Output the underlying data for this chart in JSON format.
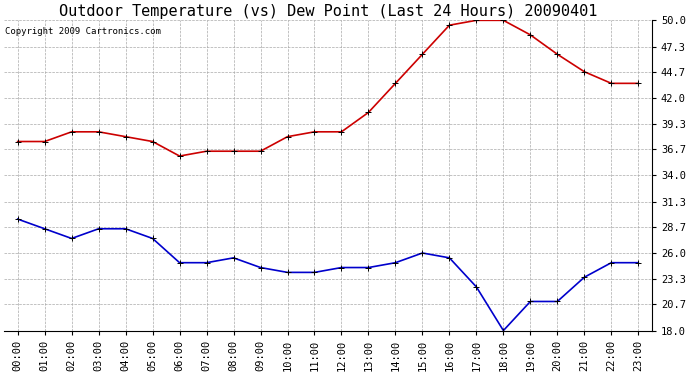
{
  "title": "Outdoor Temperature (vs) Dew Point (Last 24 Hours) 20090401",
  "copyright": "Copyright 2009 Cartronics.com",
  "hours": [
    "00:00",
    "01:00",
    "02:00",
    "03:00",
    "04:00",
    "05:00",
    "06:00",
    "07:00",
    "08:00",
    "09:00",
    "10:00",
    "11:00",
    "12:00",
    "13:00",
    "14:00",
    "15:00",
    "16:00",
    "17:00",
    "18:00",
    "19:00",
    "20:00",
    "21:00",
    "22:00",
    "23:00"
  ],
  "temp": [
    37.5,
    37.5,
    38.5,
    38.5,
    38.0,
    37.5,
    36.0,
    36.5,
    36.5,
    36.5,
    38.0,
    38.5,
    38.5,
    40.5,
    43.5,
    46.5,
    49.5,
    50.0,
    50.0,
    48.5,
    46.5,
    44.7,
    43.5,
    43.5
  ],
  "dew": [
    29.5,
    28.5,
    27.5,
    28.5,
    28.5,
    27.5,
    25.0,
    25.0,
    25.5,
    24.5,
    24.0,
    24.0,
    24.5,
    24.5,
    25.0,
    26.0,
    25.5,
    22.5,
    18.0,
    21.0,
    21.0,
    23.5,
    25.0,
    25.0
  ],
  "temp_color": "#cc0000",
  "dew_color": "#0000cc",
  "bg_color": "#ffffff",
  "grid_color": "#aaaaaa",
  "ylim_min": 18.0,
  "ylim_max": 50.0,
  "yticks": [
    18.0,
    20.7,
    23.3,
    26.0,
    28.7,
    31.3,
    34.0,
    36.7,
    39.3,
    42.0,
    44.7,
    47.3,
    50.0
  ],
  "title_fontsize": 11,
  "copyright_fontsize": 6.5,
  "tick_fontsize": 7.5,
  "marker": "+",
  "marker_size": 5,
  "linewidth": 1.2
}
